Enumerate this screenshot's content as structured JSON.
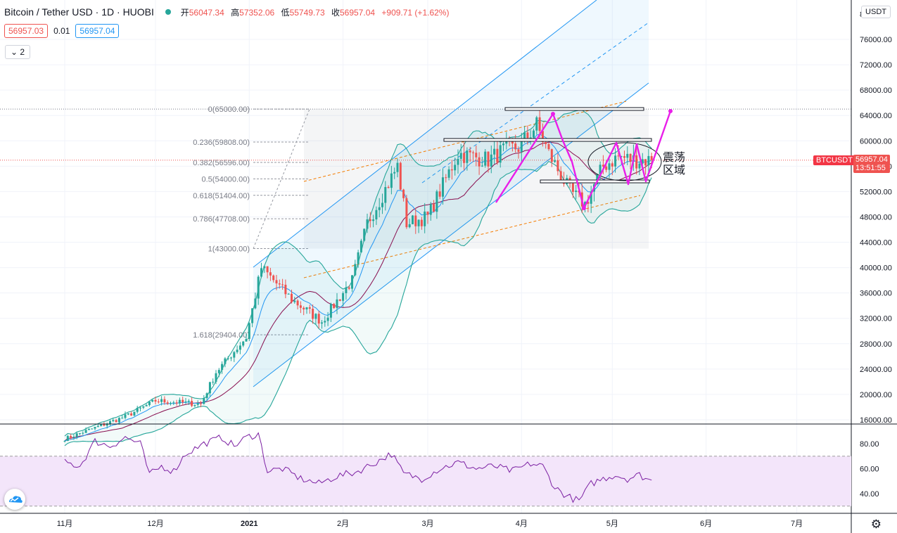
{
  "header": {
    "symbol_title": "Bitcoin / Tether USD · 1D · HUOBI",
    "open_label": "开",
    "open": "56047.34",
    "high_label": "高",
    "high": "57352.06",
    "low_label": "低",
    "low": "55749.73",
    "close_label": "收",
    "close": "56957.04",
    "change": "+909.71 (+1.62%)"
  },
  "trade": {
    "sell_price": "56957.03",
    "spread": "0.01",
    "buy_price": "56957.04"
  },
  "indicators_collapse_label": "2",
  "currency_button": "USDT",
  "last_price_tag": {
    "symbol": "BTCUSDT",
    "price": "56957.04",
    "countdown": "13:51:55"
  },
  "annotation_text": [
    "震荡",
    "区域"
  ],
  "chart_data": {
    "type": "candlestick",
    "title": "Bitcoin / Tether USD · 1D · HUOBI",
    "price_axis": {
      "min": 14500,
      "max": 80000,
      "ticks": [
        16000,
        20000,
        24000,
        28000,
        32000,
        36000,
        40000,
        44000,
        48000,
        52000,
        56000,
        60000,
        64000,
        68000,
        72000,
        76000
      ],
      "tick_labels": [
        "16000.00",
        "20000.00",
        "24000.00",
        "28000.00",
        "32000.00",
        "36000.00",
        "40000.00",
        "44000.00",
        "48000.00",
        "52000.00",
        "56000.00",
        "60000.00",
        "64000.00",
        "68000.00",
        "72000.00",
        "76000.00"
      ],
      "top_partial_label": "8"
    },
    "time_axis": {
      "labels": [
        "11月",
        "12月",
        "2021",
        "2月",
        "3月",
        "4月",
        "5月",
        "6月",
        "7月"
      ],
      "label_day_index": [
        0,
        30,
        61,
        92,
        120,
        151,
        181,
        212,
        242
      ],
      "total_days": 270,
      "first_candle_day": 0,
      "last_candle_day": 194
    },
    "path_key_points": [
      {
        "day": 0,
        "price": 13000
      },
      {
        "day": 20,
        "price": 16500
      },
      {
        "day": 30,
        "price": 19000
      },
      {
        "day": 45,
        "price": 18500
      },
      {
        "day": 50,
        "price": 23500
      },
      {
        "day": 60,
        "price": 29000
      },
      {
        "day": 65,
        "price": 40000
      },
      {
        "day": 75,
        "price": 35000
      },
      {
        "day": 85,
        "price": 31500
      },
      {
        "day": 95,
        "price": 38000
      },
      {
        "day": 100,
        "price": 47000
      },
      {
        "day": 110,
        "price": 56000
      },
      {
        "day": 113,
        "price": 47000
      },
      {
        "day": 120,
        "price": 48000
      },
      {
        "day": 130,
        "price": 58000
      },
      {
        "day": 140,
        "price": 57000
      },
      {
        "day": 145,
        "price": 58500
      },
      {
        "day": 150,
        "price": 59000
      },
      {
        "day": 156,
        "price": 62500
      },
      {
        "day": 160,
        "price": 58000
      },
      {
        "day": 167,
        "price": 52000
      },
      {
        "day": 172,
        "price": 50000
      },
      {
        "day": 178,
        "price": 56000
      },
      {
        "day": 183,
        "price": 57500
      },
      {
        "day": 188,
        "price": 57000
      },
      {
        "day": 194,
        "price": 56957
      }
    ],
    "fibonacci": [
      {
        "level": "0",
        "label": "0(65000.00)",
        "price": 65000
      },
      {
        "level": "0.236",
        "label": "0.236(59808.00)",
        "price": 59808
      },
      {
        "level": "0.382",
        "label": "0.382(56596.00)",
        "price": 56596
      },
      {
        "level": "0.5",
        "label": "0.5(54000.00)",
        "price": 54000
      },
      {
        "level": "0.618",
        "label": "0.618(51404.00)",
        "price": 51404
      },
      {
        "level": "0.786",
        "label": "0.786(47708.00)",
        "price": 47708
      },
      {
        "level": "1",
        "label": "1(43000.00)",
        "price": 43000
      },
      {
        "level": "1.618",
        "label": "1.618(29404.00)",
        "price": 29404
      }
    ],
    "last_price": 56957.04,
    "rsi": {
      "min": 20,
      "max": 100,
      "upper_band": 70,
      "lower_band": 30,
      "ticks": [
        40,
        60,
        80
      ],
      "tick_labels": [
        "40.00",
        "60.00",
        "80.00"
      ],
      "key_points": [
        {
          "day": 0,
          "value": 65
        },
        {
          "day": 5,
          "value": 62
        },
        {
          "day": 10,
          "value": 82
        },
        {
          "day": 15,
          "value": 78
        },
        {
          "day": 20,
          "value": 85
        },
        {
          "day": 25,
          "value": 80
        },
        {
          "day": 28,
          "value": 55
        },
        {
          "day": 32,
          "value": 62
        },
        {
          "day": 36,
          "value": 58
        },
        {
          "day": 40,
          "value": 72
        },
        {
          "day": 46,
          "value": 80
        },
        {
          "day": 52,
          "value": 85
        },
        {
          "day": 56,
          "value": 78
        },
        {
          "day": 60,
          "value": 85
        },
        {
          "day": 64,
          "value": 88
        },
        {
          "day": 67,
          "value": 58
        },
        {
          "day": 72,
          "value": 60
        },
        {
          "day": 78,
          "value": 52
        },
        {
          "day": 84,
          "value": 48
        },
        {
          "day": 90,
          "value": 54
        },
        {
          "day": 96,
          "value": 57
        },
        {
          "day": 102,
          "value": 64
        },
        {
          "day": 108,
          "value": 72
        },
        {
          "day": 112,
          "value": 56
        },
        {
          "day": 118,
          "value": 52
        },
        {
          "day": 124,
          "value": 60
        },
        {
          "day": 130,
          "value": 65
        },
        {
          "day": 136,
          "value": 60
        },
        {
          "day": 142,
          "value": 62
        },
        {
          "day": 148,
          "value": 58
        },
        {
          "day": 154,
          "value": 64
        },
        {
          "day": 158,
          "value": 62
        },
        {
          "day": 162,
          "value": 45
        },
        {
          "day": 166,
          "value": 38
        },
        {
          "day": 170,
          "value": 34
        },
        {
          "day": 174,
          "value": 48
        },
        {
          "day": 178,
          "value": 52
        },
        {
          "day": 182,
          "value": 55
        },
        {
          "day": 186,
          "value": 52
        },
        {
          "day": 190,
          "value": 55
        },
        {
          "day": 194,
          "value": 50
        }
      ]
    },
    "colors": {
      "up": "#26a69a",
      "down": "#ef5350",
      "bollinger": "#26a69a",
      "ma": "#880e4f",
      "ema": "#2196f3",
      "channel": "#2196f3",
      "orange_channel": "#f57c00",
      "annotation": "#e91ee9",
      "rsi_line": "#7b1fa2",
      "rsi_band": "#f3e5fa",
      "tag_symbol": "#f23645",
      "tag_price": "#ef5350",
      "grid": "#f0f3fa"
    }
  }
}
